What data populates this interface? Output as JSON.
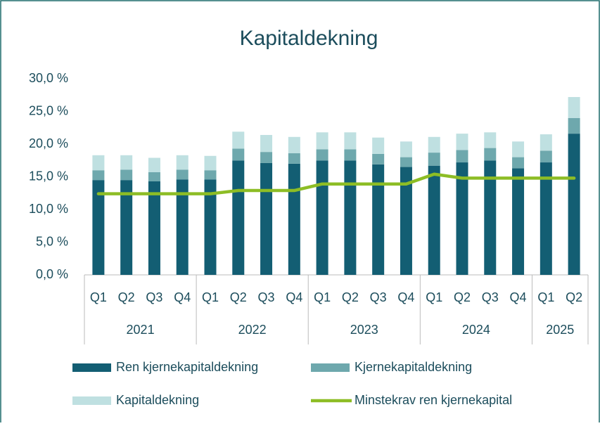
{
  "chart_data": {
    "type": "stacked_bar_line",
    "title": "Kapitaldekning",
    "category_groups": [
      {
        "name": "2021",
        "categories": [
          "Q1",
          "Q2",
          "Q3",
          "Q4"
        ]
      },
      {
        "name": "2022",
        "categories": [
          "Q1",
          "Q2",
          "Q3",
          "Q4"
        ]
      },
      {
        "name": "2023",
        "categories": [
          "Q1",
          "Q2",
          "Q3",
          "Q4"
        ]
      },
      {
        "name": "2024",
        "categories": [
          "Q1",
          "Q2",
          "Q3",
          "Q4"
        ]
      },
      {
        "name": "2025",
        "categories": [
          "Q1",
          "Q2"
        ]
      }
    ],
    "series": [
      {
        "name": "Ren kjernekapitaldekning",
        "type": "bar",
        "color": "#135e73",
        "values": [
          14.5,
          14.5,
          14.3,
          14.6,
          14.6,
          17.5,
          17.1,
          17.0,
          17.5,
          17.5,
          16.9,
          16.5,
          16.7,
          17.2,
          17.5,
          16.3,
          17.2,
          21.6
        ]
      },
      {
        "name": "Kjernekapitaldekning",
        "type": "bar",
        "color": "#6ea8ad",
        "values": [
          1.5,
          1.6,
          1.4,
          1.5,
          1.4,
          1.8,
          1.7,
          1.6,
          1.7,
          1.7,
          1.6,
          1.5,
          2.0,
          1.9,
          1.9,
          1.7,
          1.8,
          2.4
        ]
      },
      {
        "name": "Kapitaldekning",
        "type": "bar",
        "color": "#bfe0e1",
        "values": [
          2.3,
          2.2,
          2.2,
          2.2,
          2.2,
          2.6,
          2.6,
          2.5,
          2.6,
          2.6,
          2.5,
          2.4,
          2.4,
          2.5,
          2.4,
          2.4,
          2.5,
          3.2
        ]
      },
      {
        "name": "Minstekrav ren kjernekapital",
        "type": "line",
        "color": "#8dbd25",
        "values": [
          12.4,
          12.4,
          12.4,
          12.4,
          12.4,
          12.9,
          12.9,
          12.9,
          13.9,
          13.9,
          13.9,
          13.9,
          15.4,
          14.8,
          14.8,
          14.8,
          14.8,
          14.8
        ]
      }
    ],
    "ylim": [
      0,
      30
    ],
    "yticks": [
      {
        "value": 0,
        "label": "0,0 %"
      },
      {
        "value": 5,
        "label": "5,0 %"
      },
      {
        "value": 10,
        "label": "10,0 %"
      },
      {
        "value": 15,
        "label": "15,0 %"
      },
      {
        "value": 20,
        "label": "20,0 %"
      },
      {
        "value": 25,
        "label": "25,0 %"
      },
      {
        "value": 30,
        "label": "30,0 %"
      }
    ],
    "grid": false
  }
}
